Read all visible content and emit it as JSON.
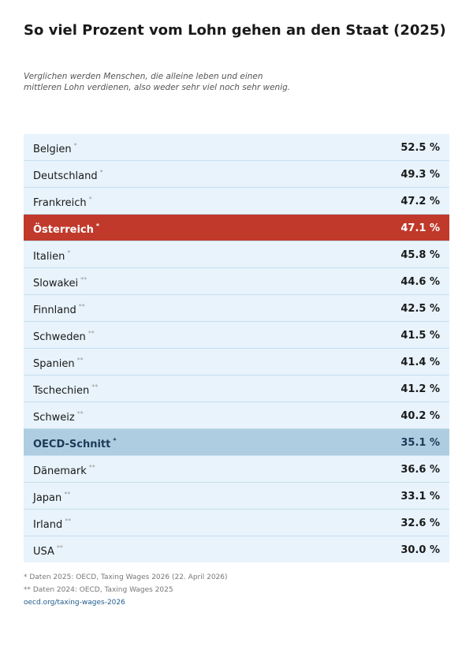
{
  "header": {
    "title": "So viel Prozent vom Lohn gehen an den Staat (2025)",
    "subtitle": [
      "Verglichen werden Menschen, die alleine leben und einen",
      "mittleren Lohn verdienen, also weder sehr viel noch sehr wenig."
    ]
  },
  "table": {
    "rows": [
      {
        "country": "Belgien",
        "note": "*",
        "value": "52.5 %"
      },
      {
        "country": "Deutschland",
        "note": "*",
        "value": "49.3 %"
      },
      {
        "country": "Frankreich",
        "note": "*",
        "value": "47.2 %"
      },
      {
        "country": "Österreich",
        "note": "*",
        "value": "47.1 %",
        "color": "#c0392b",
        "text_color": "#ffffff"
      },
      {
        "country": "Italien",
        "note": "*",
        "value": "45.8 %"
      },
      {
        "country": "Slowakei",
        "note": "**",
        "value": "44.6 %"
      },
      {
        "country": "Finnland",
        "note": "**",
        "value": "42.5 %"
      },
      {
        "country": "Schweden",
        "note": "**",
        "value": "41.5 %"
      },
      {
        "country": "Spanien",
        "note": "**",
        "value": "41.4 %"
      },
      {
        "country": "Tschechien",
        "note": "**",
        "value": "41.2 %"
      },
      {
        "country": "Schweiz",
        "note": "**",
        "value": "40.2 %"
      },
      {
        "country": "OECD-Schnitt",
        "note": "*",
        "value": "35.1 %",
        "color": "#aecde0",
        "text_color": "#1b3a57"
      },
      {
        "country": "Dänemark",
        "note": "**",
        "value": "36.6 %"
      },
      {
        "country": "Japan",
        "note": "**",
        "value": "33.1 %"
      },
      {
        "country": "Irland",
        "note": "**",
        "value": "32.6 %"
      },
      {
        "country": "USA",
        "note": "**",
        "value": "30.0 %"
      }
    ]
  },
  "footer": {
    "notes": [
      "* Daten 2025: OECD, Taxing Wages 2026 (22. April 2026)",
      "** Daten 2024: OECD, Taxing Wages 2025"
    ],
    "link": "oecd.org/taxing-wages-2026"
  }
}
